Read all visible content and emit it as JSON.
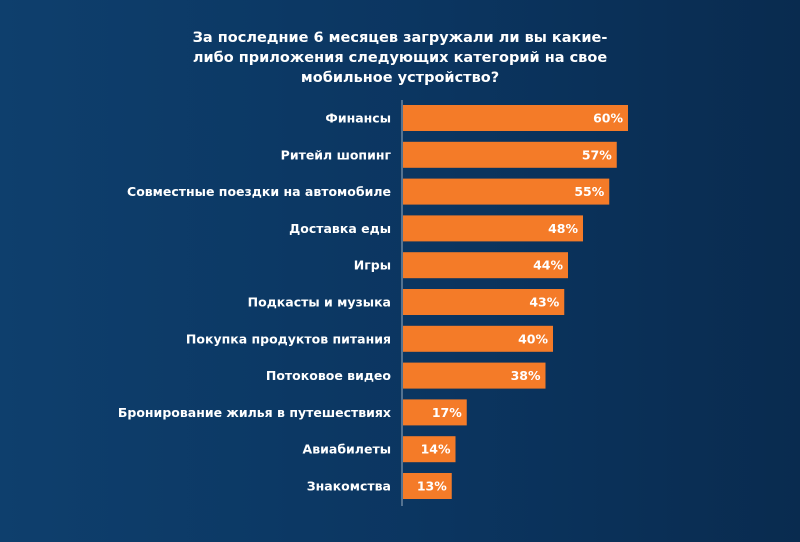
{
  "chart_data": {
    "type": "hbar",
    "title": "За последние 6 месяцев загружали ли вы какие-либо приложения следующих категорий на свое мобильное устройство?",
    "categories": [
      "Финансы",
      "Ритейл шопинг",
      "Совместные поездки на автомобиле",
      "Доставка еды",
      "Игры",
      "Подкасты и музыка",
      "Покупка продуктов питания",
      "Потоковое видео",
      "Бронирование жилья в путешествиях",
      "Авиабилеты",
      "Знакомства"
    ],
    "values": [
      60,
      57,
      55,
      48,
      44,
      43,
      40,
      38,
      17,
      14,
      13
    ],
    "value_labels": [
      "60%",
      "57%",
      "55%",
      "48%",
      "44%",
      "43%",
      "40%",
      "38%",
      "17%",
      "14%",
      "13%"
    ],
    "color": "#f47b28"
  }
}
